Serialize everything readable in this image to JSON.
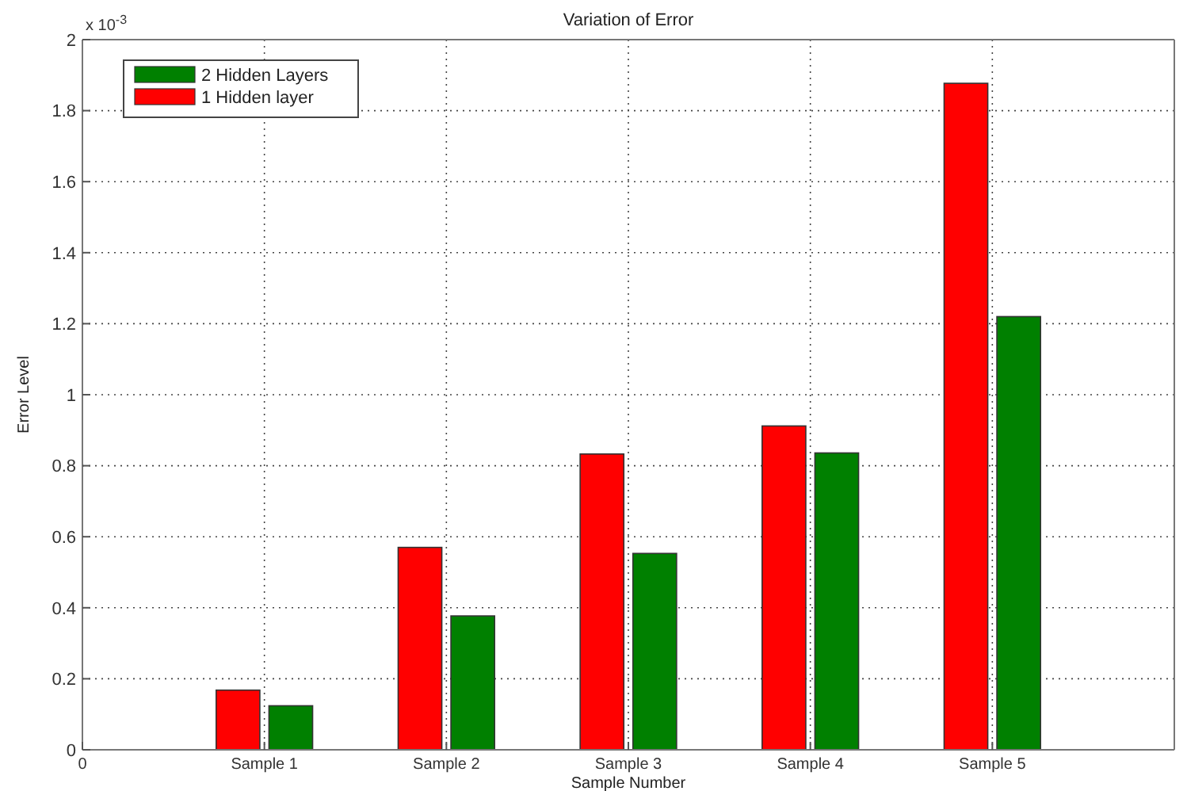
{
  "chart_data": {
    "type": "bar",
    "title": "Variation of Error",
    "xlabel": "Sample Number",
    "ylabel": "Error Level",
    "annotations": [
      "x 10$^{-3}$"
    ],
    "categories": [
      "0",
      "Sample 1",
      "Sample 2",
      "Sample 3",
      "Sample 4",
      "Sample 5",
      null
    ],
    "ylim": [
      0,
      2
    ],
    "yticks": [
      0,
      0.2,
      0.4,
      0.6,
      0.8,
      1,
      1.2,
      1.4,
      1.6,
      1.8,
      2
    ],
    "series": [
      {
        "name": "1 Hidden layer",
        "color": "#ff0000",
        "values": [
          null,
          0.168,
          0.57,
          0.833,
          0.912,
          1.877,
          null
        ]
      },
      {
        "name": "2 Hidden Layers",
        "color": "#008000",
        "values": [
          null,
          0.124,
          0.377,
          0.553,
          0.836,
          1.22,
          null
        ]
      }
    ],
    "grid": true,
    "legend": "top left"
  }
}
